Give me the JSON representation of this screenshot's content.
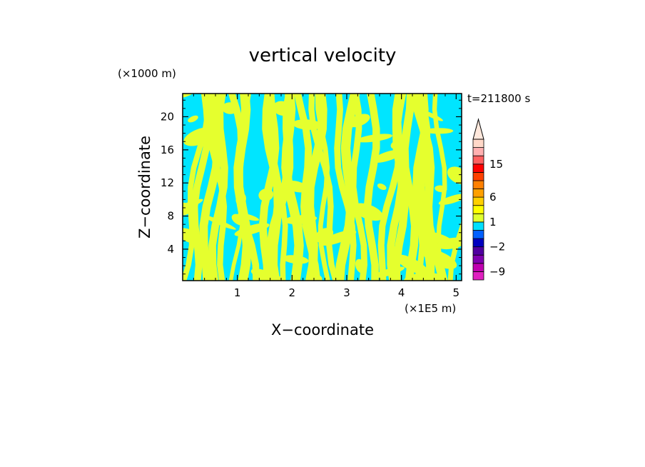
{
  "chart_data": {
    "type": "heatmap",
    "title": "vertical velocity",
    "xlabel": "X−coordinate",
    "ylabel": "Z−coordinate",
    "x_unit": "(×1E5 m)",
    "y_unit": "(×1000 m)",
    "time_label": "t=211800 s",
    "xlim": [
      0.0,
      5.1
    ],
    "ylim": [
      0.2,
      22.8
    ],
    "x_ticks": [
      1,
      2,
      3,
      4,
      5
    ],
    "y_ticks": [
      4,
      8,
      12,
      16,
      20
    ],
    "colorbar": {
      "colors": [
        "#e020c0",
        "#c000b0",
        "#8000b0",
        "#5000a0",
        "#0000c0",
        "#0060ff",
        "#00e0ff",
        "#e0ff30",
        "#ffff00",
        "#ffd000",
        "#ffa000",
        "#ff8000",
        "#ff4000",
        "#ff0000",
        "#ff6060",
        "#ffb0b0",
        "#ffd8c8"
      ],
      "labeled_levels": [
        {
          "value": -9,
          "label": "−9"
        },
        {
          "value": -2,
          "label": "−2"
        },
        {
          "value": 1,
          "label": "1"
        },
        {
          "value": 6,
          "label": "6"
        },
        {
          "value": 15,
          "label": "15"
        }
      ]
    },
    "dominant_values": {
      "negative_color": "#00e5ff",
      "positive_color": "#e5ff2e"
    }
  }
}
